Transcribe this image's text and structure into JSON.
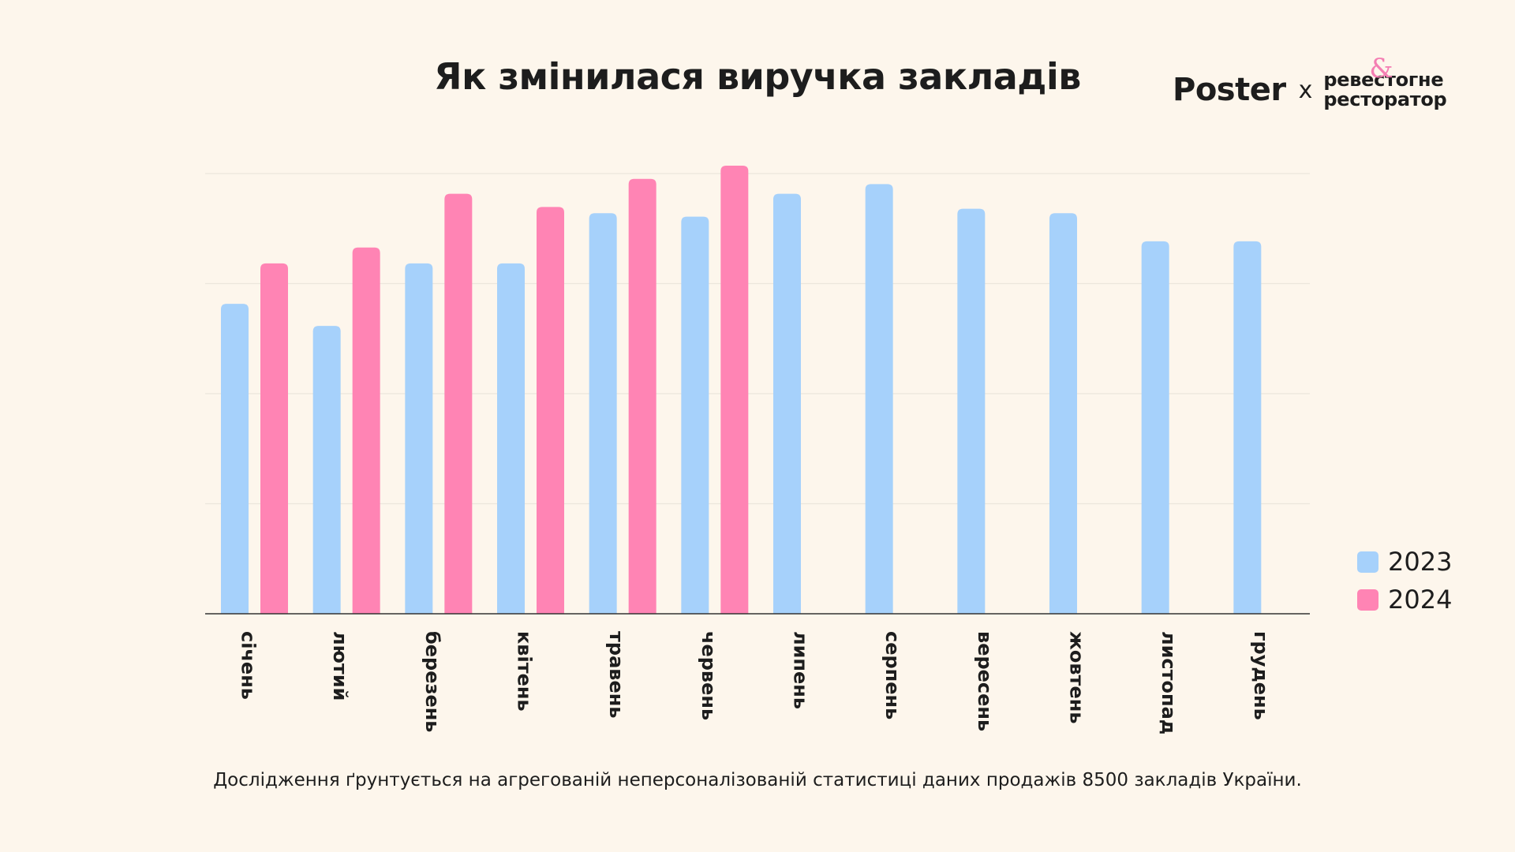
{
  "title": "Як змінилася виручка закладів",
  "brand": {
    "poster": "Poster",
    "separator": "x",
    "partner_line1": "ревестогне",
    "partner_line2": "ресторатор",
    "partner_symbol": "&"
  },
  "footnote": "Дослідження ґрунтується на агрегованій неперсоналізованій статистиці даних продажів 8500 закладів України.",
  "colors": {
    "background": "#fdf6ec",
    "series_2023": "#a6d1fb",
    "series_2024": "#ff84b4",
    "axis": "#333333",
    "grid": "#ece6dc"
  },
  "legend": [
    {
      "label": "2023",
      "color": "#a6d1fb"
    },
    {
      "label": "2024",
      "color": "#ff84b4"
    }
  ],
  "chart_data": {
    "type": "bar",
    "title": "Як змінилася виручка закладів",
    "xlabel": "",
    "ylabel": "",
    "y_ticks_shown": false,
    "grid": true,
    "legend_position": "right",
    "ylim": [
      0,
      100
    ],
    "categories": [
      "січень",
      "лютий",
      "березень",
      "квітень",
      "травень",
      "червень",
      "липень",
      "серпень",
      "вересень",
      "жовтень",
      "листопад",
      "грудень"
    ],
    "series": [
      {
        "name": "2023",
        "color": "#a6d1fb",
        "values": [
          70.4,
          65.4,
          79.6,
          79.6,
          91,
          90.2,
          95.4,
          97.6,
          92,
          91,
          84.6,
          84.6
        ]
      },
      {
        "name": "2024",
        "color": "#ff84b4",
        "values": [
          79.6,
          83.2,
          95.4,
          92.4,
          98.8,
          101.8,
          null,
          null,
          null,
          null,
          null,
          null
        ]
      }
    ]
  }
}
